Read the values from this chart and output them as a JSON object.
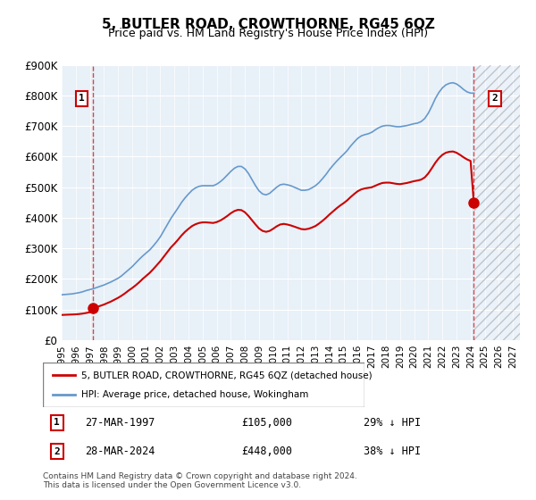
{
  "title": "5, BUTLER ROAD, CROWTHORNE, RG45 6QZ",
  "subtitle": "Price paid vs. HM Land Registry's House Price Index (HPI)",
  "ylabel": "",
  "xlabel": "",
  "ylim": [
    0,
    900000
  ],
  "yticks": [
    0,
    100000,
    200000,
    300000,
    400000,
    500000,
    600000,
    700000,
    800000,
    900000
  ],
  "ytick_labels": [
    "£0",
    "£100K",
    "£200K",
    "£300K",
    "£400K",
    "£500K",
    "£600K",
    "£700K",
    "£800K",
    "£900K"
  ],
  "xlim_start": 1995.0,
  "xlim_end": 2027.5,
  "future_start": 2024.25,
  "point1_x": 1997.23,
  "point1_y": 105000,
  "point2_x": 2024.23,
  "point2_y": 448000,
  "legend_line1": "5, BUTLER ROAD, CROWTHORNE, RG45 6QZ (detached house)",
  "legend_line2": "HPI: Average price, detached house, Wokingham",
  "annotation1_num": "1",
  "annotation1_date": "27-MAR-1997",
  "annotation1_price": "£105,000",
  "annotation1_hpi": "29% ↓ HPI",
  "annotation2_num": "2",
  "annotation2_date": "28-MAR-2024",
  "annotation2_price": "£448,000",
  "annotation2_hpi": "38% ↓ HPI",
  "footer": "Contains HM Land Registry data © Crown copyright and database right 2024.\nThis data is licensed under the Open Government Licence v3.0.",
  "bg_color": "#e8f0f8",
  "grid_color": "#ffffff",
  "red_line_color": "#cc0000",
  "blue_line_color": "#6699cc",
  "hpi_line": {
    "years": [
      1995.0,
      1995.25,
      1995.5,
      1995.75,
      1996.0,
      1996.25,
      1996.5,
      1996.75,
      1997.0,
      1997.25,
      1997.5,
      1997.75,
      1998.0,
      1998.25,
      1998.5,
      1998.75,
      1999.0,
      1999.25,
      1999.5,
      1999.75,
      2000.0,
      2000.25,
      2000.5,
      2000.75,
      2001.0,
      2001.25,
      2001.5,
      2001.75,
      2002.0,
      2002.25,
      2002.5,
      2002.75,
      2003.0,
      2003.25,
      2003.5,
      2003.75,
      2004.0,
      2004.25,
      2004.5,
      2004.75,
      2005.0,
      2005.25,
      2005.5,
      2005.75,
      2006.0,
      2006.25,
      2006.5,
      2006.75,
      2007.0,
      2007.25,
      2007.5,
      2007.75,
      2008.0,
      2008.25,
      2008.5,
      2008.75,
      2009.0,
      2009.25,
      2009.5,
      2009.75,
      2010.0,
      2010.25,
      2010.5,
      2010.75,
      2011.0,
      2011.25,
      2011.5,
      2011.75,
      2012.0,
      2012.25,
      2012.5,
      2012.75,
      2013.0,
      2013.25,
      2013.5,
      2013.75,
      2014.0,
      2014.25,
      2014.5,
      2014.75,
      2015.0,
      2015.25,
      2015.5,
      2015.75,
      2016.0,
      2016.25,
      2016.5,
      2016.75,
      2017.0,
      2017.25,
      2017.5,
      2017.75,
      2018.0,
      2018.25,
      2018.5,
      2018.75,
      2019.0,
      2019.25,
      2019.5,
      2019.75,
      2020.0,
      2020.25,
      2020.5,
      2020.75,
      2021.0,
      2021.25,
      2021.5,
      2021.75,
      2022.0,
      2022.25,
      2022.5,
      2022.75,
      2023.0,
      2023.25,
      2023.5,
      2023.75,
      2024.0,
      2024.25
    ],
    "values": [
      148000,
      149000,
      150000,
      151000,
      153000,
      155000,
      158000,
      162000,
      165000,
      168000,
      172000,
      176000,
      180000,
      185000,
      190000,
      196000,
      202000,
      210000,
      220000,
      230000,
      240000,
      252000,
      264000,
      275000,
      285000,
      295000,
      308000,
      322000,
      338000,
      358000,
      378000,
      398000,
      415000,
      432000,
      450000,
      465000,
      478000,
      490000,
      498000,
      503000,
      505000,
      505000,
      505000,
      505000,
      510000,
      518000,
      528000,
      540000,
      552000,
      562000,
      568000,
      568000,
      560000,
      545000,
      525000,
      505000,
      488000,
      478000,
      475000,
      480000,
      490000,
      500000,
      508000,
      510000,
      508000,
      505000,
      500000,
      495000,
      490000,
      490000,
      492000,
      498000,
      505000,
      515000,
      528000,
      542000,
      558000,
      572000,
      585000,
      597000,
      608000,
      620000,
      635000,
      648000,
      660000,
      668000,
      672000,
      675000,
      680000,
      688000,
      695000,
      700000,
      702000,
      702000,
      700000,
      698000,
      698000,
      700000,
      702000,
      705000,
      708000,
      710000,
      715000,
      725000,
      742000,
      765000,
      790000,
      810000,
      825000,
      835000,
      840000,
      842000,
      838000,
      830000,
      820000,
      812000,
      808000,
      808000
    ]
  },
  "price_line": {
    "years": [
      1995.0,
      1995.25,
      1995.5,
      1995.75,
      1996.0,
      1996.25,
      1996.5,
      1996.75,
      1997.0,
      1997.23,
      1997.5,
      1997.75,
      1998.0,
      1998.25,
      1998.5,
      1998.75,
      1999.0,
      1999.25,
      1999.5,
      1999.75,
      2000.0,
      2000.25,
      2000.5,
      2000.75,
      2001.0,
      2001.25,
      2001.5,
      2001.75,
      2002.0,
      2002.25,
      2002.5,
      2002.75,
      2003.0,
      2003.25,
      2003.5,
      2003.75,
      2004.0,
      2004.25,
      2004.5,
      2004.75,
      2005.0,
      2005.25,
      2005.5,
      2005.75,
      2006.0,
      2006.25,
      2006.5,
      2006.75,
      2007.0,
      2007.25,
      2007.5,
      2007.75,
      2008.0,
      2008.25,
      2008.5,
      2008.75,
      2009.0,
      2009.25,
      2009.5,
      2009.75,
      2010.0,
      2010.25,
      2010.5,
      2010.75,
      2011.0,
      2011.25,
      2011.5,
      2011.75,
      2012.0,
      2012.25,
      2012.5,
      2012.75,
      2013.0,
      2013.25,
      2013.5,
      2013.75,
      2014.0,
      2014.25,
      2014.5,
      2014.75,
      2015.0,
      2015.25,
      2015.5,
      2015.75,
      2016.0,
      2016.25,
      2016.5,
      2016.75,
      2017.0,
      2017.25,
      2017.5,
      2017.75,
      2018.0,
      2018.25,
      2018.5,
      2018.75,
      2019.0,
      2019.25,
      2019.5,
      2019.75,
      2020.0,
      2020.25,
      2020.5,
      2020.75,
      2021.0,
      2021.25,
      2021.5,
      2021.75,
      2022.0,
      2022.25,
      2022.5,
      2022.75,
      2023.0,
      2023.25,
      2023.5,
      2023.75,
      2024.0,
      2024.23
    ],
    "values": [
      82000,
      82500,
      83000,
      83500,
      84000,
      85000,
      86500,
      88500,
      91000,
      105000,
      108000,
      112000,
      116000,
      121000,
      126000,
      132000,
      138000,
      145000,
      153000,
      162000,
      170000,
      179000,
      189000,
      200000,
      210000,
      220000,
      232000,
      245000,
      258000,
      273000,
      288000,
      303000,
      315000,
      328000,
      342000,
      354000,
      364000,
      373000,
      379000,
      383000,
      385000,
      385000,
      384000,
      383000,
      386000,
      391000,
      398000,
      406000,
      415000,
      422000,
      426000,
      425000,
      418000,
      406000,
      392000,
      378000,
      365000,
      357000,
      354000,
      357000,
      364000,
      372000,
      378000,
      380000,
      378000,
      375000,
      371000,
      367000,
      363000,
      362000,
      364000,
      368000,
      373000,
      381000,
      390000,
      400000,
      411000,
      421000,
      431000,
      440000,
      448000,
      457000,
      468000,
      478000,
      487000,
      493000,
      496000,
      498000,
      500000,
      505000,
      510000,
      514000,
      515000,
      515000,
      513000,
      511000,
      510000,
      512000,
      514000,
      517000,
      520000,
      522000,
      525000,
      532000,
      545000,
      562000,
      580000,
      595000,
      606000,
      613000,
      616000,
      617000,
      613000,
      606000,
      598000,
      591000,
      586000,
      448000
    ]
  }
}
